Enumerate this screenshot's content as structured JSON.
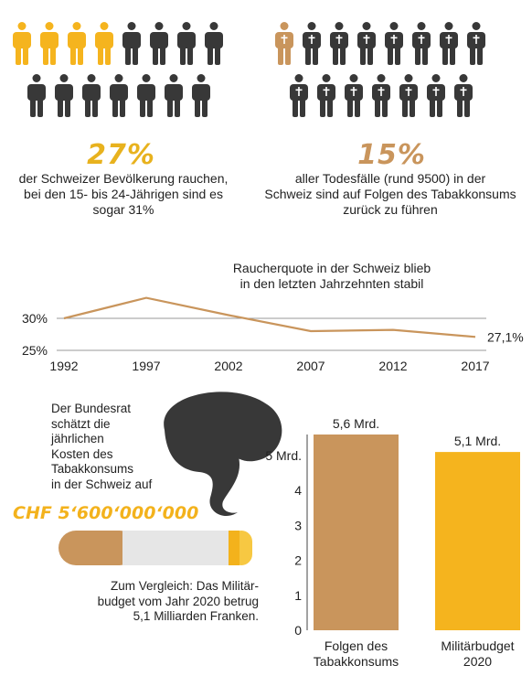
{
  "colors": {
    "yellow": "#f5b41e",
    "brown": "#c9955c",
    "dark": "#383838",
    "line": "#c9955c",
    "grid": "#9a9a9a",
    "cig_filter": "#c9955c",
    "cig_paper": "#e6e6e6",
    "cig_tip": "#f7c842",
    "smoke": "#383838"
  },
  "icons": {
    "smokers_group": {
      "icon": "person-icon",
      "highlighted": 4,
      "total": 14,
      "highlight_color": "yellow"
    },
    "deaths_group": {
      "icon": "person-cross-icon",
      "highlighted": 1,
      "total": 14,
      "highlight_color": "brown"
    }
  },
  "stats": {
    "smokers": {
      "value": "27%",
      "text_lines": [
        "der Schweizer Bevölkerung rauchen,",
        "bei den 15- bis 24-Jährigen sind es",
        "sogar 31%"
      ]
    },
    "deaths": {
      "value": "15%",
      "text_lines": [
        "aller Todesfälle (rund 9500) in der",
        "Schweiz sind auf Folgen des Tabakkonsums",
        "zurück zu führen"
      ]
    }
  },
  "line_chart_title_lines": [
    "Raucherquote in der Schweiz blieb",
    "in den letzten Jahrzehnten stabil"
  ],
  "cost": {
    "text_lines": [
      "Der Bundesrat",
      "schätzt die",
      "jährlichen",
      "Kosten des",
      "Tabakkonsums",
      "in der Schweiz auf"
    ],
    "amount": "CHF 5‘600‘000‘000",
    "comparison_lines": [
      "Zum Vergleich: Das Militär-",
      "budget vom Jahr 2020 betrug",
      "5,1 Milliarden Franken."
    ]
  },
  "chart_data": [
    {
      "type": "line",
      "title": "Raucherquote in der Schweiz blieb in den letzten Jahrzehnten stabil",
      "x": [
        1992,
        1997,
        2002,
        2007,
        2012,
        2017
      ],
      "series": [
        {
          "values": [
            30.0,
            33.2,
            30.5,
            28.0,
            28.2,
            27.1
          ]
        }
      ],
      "xticks": [
        "1992",
        "1997",
        "2002",
        "2007",
        "2012",
        "2017"
      ],
      "yticks": [
        "25%",
        "30%"
      ],
      "ytick_values": [
        25,
        30
      ],
      "ylim": [
        25,
        34
      ],
      "end_label": "27,1%",
      "grid": true
    },
    {
      "type": "bar",
      "categories": [
        {
          "lines": [
            "Folgen des",
            "Tabakkonsums"
          ]
        },
        {
          "lines": [
            "Militärbudget",
            "2020"
          ]
        }
      ],
      "values": [
        5.6,
        5.1
      ],
      "value_labels": [
        "5,6 Mrd.",
        "5,1 Mrd."
      ],
      "colors": [
        "#c9955c",
        "#f5b41e"
      ],
      "yticks": [
        "0",
        "1",
        "2",
        "3",
        "4",
        "5 Mrd."
      ],
      "ytick_values": [
        0,
        1,
        2,
        3,
        4,
        5
      ],
      "ylim": [
        0,
        5.6
      ],
      "grid": false
    }
  ]
}
